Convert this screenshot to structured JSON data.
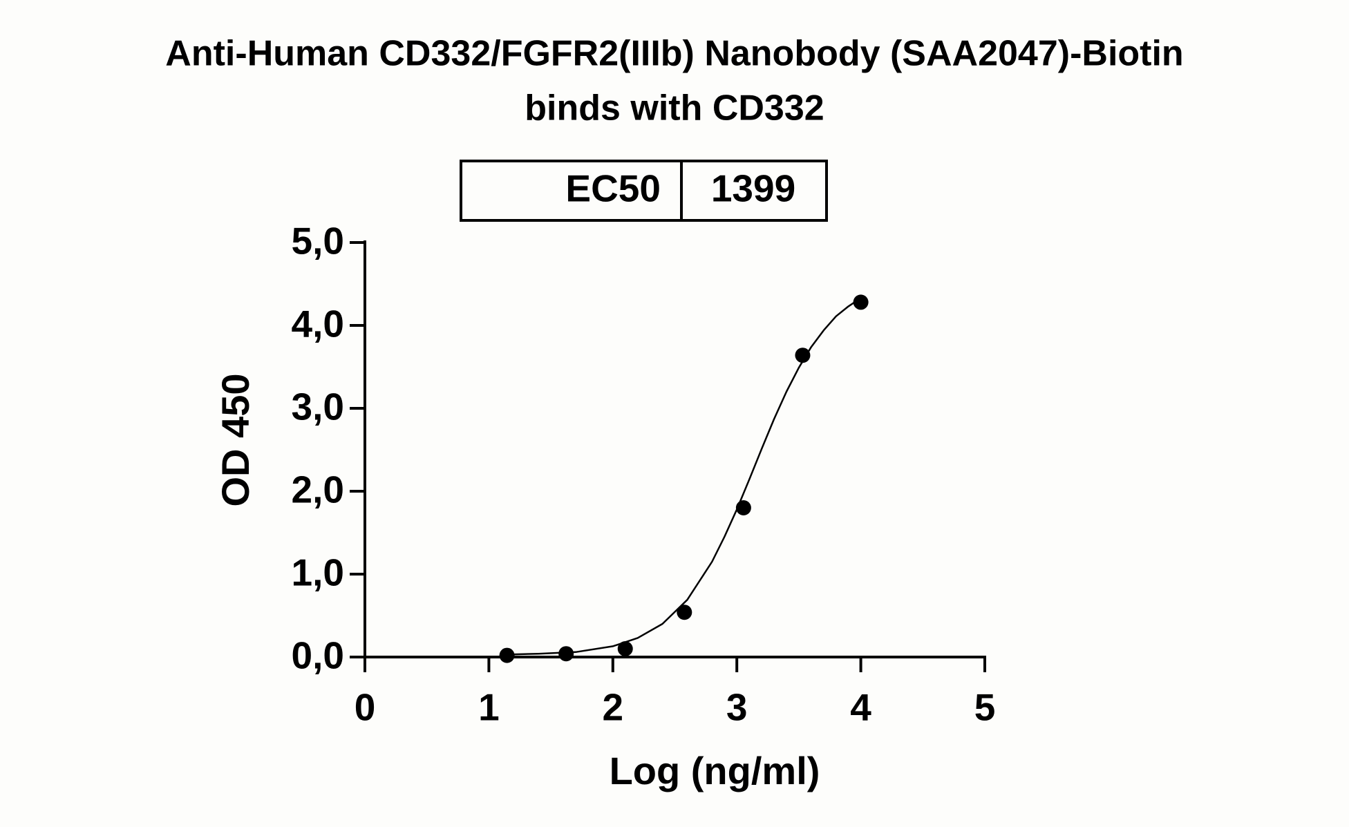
{
  "chart_data": {
    "type": "scatter",
    "title": [
      "Anti-Human CD332/FGFR2(IIIb) Nanobody (SAA2047)-Biotin",
      "binds with CD332"
    ],
    "table": {
      "label": "EC50",
      "value": 1399
    },
    "x_label": "Log (ng/ml)",
    "y_label": "OD 450",
    "xlim": [
      0,
      5
    ],
    "xticks": [
      0,
      1,
      2,
      3,
      4,
      5
    ],
    "ylim": [
      0,
      5
    ],
    "yticks": [
      {
        "value": 0,
        "label": "0,0"
      },
      {
        "value": 1,
        "label": "1,0"
      },
      {
        "value": 2,
        "label": "2,0"
      },
      {
        "value": 3,
        "label": "3,0"
      },
      {
        "value": 4,
        "label": "4,0"
      },
      {
        "value": 5,
        "label": "5,0"
      }
    ],
    "series": [
      {
        "style": "points",
        "color": "#000000",
        "x": [
          1.146,
          1.623,
          2.1,
          2.577,
          3.054,
          3.531,
          4.0
        ],
        "values": [
          0.02,
          0.04,
          0.1,
          0.54,
          1.8,
          3.64,
          4.28
        ]
      },
      {
        "style": "line",
        "color": "#000000",
        "x": [
          1.146,
          1.4,
          1.7,
          2.0,
          2.2,
          2.4,
          2.6,
          2.8,
          2.9,
          3.0,
          3.1,
          3.2,
          3.3,
          3.4,
          3.5,
          3.6,
          3.7,
          3.8,
          3.9,
          4.0
        ],
        "values": [
          0.03,
          0.04,
          0.06,
          0.13,
          0.23,
          0.4,
          0.69,
          1.15,
          1.45,
          1.78,
          2.14,
          2.51,
          2.87,
          3.2,
          3.49,
          3.74,
          3.94,
          4.11,
          4.23,
          4.33
        ]
      }
    ]
  }
}
